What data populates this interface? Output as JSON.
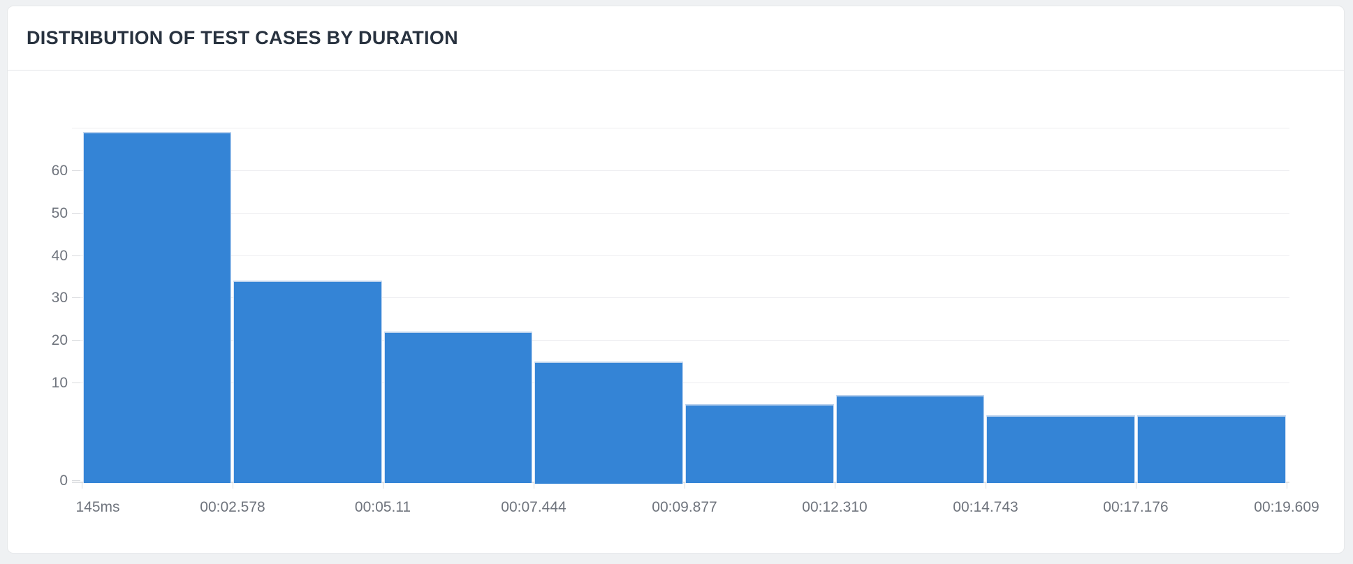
{
  "widget": {
    "title": "DISTRIBUTION OF TEST CASES BY DURATION"
  },
  "chart_data": {
    "type": "bar",
    "title": "DISTRIBUTION OF TEST CASES BY DURATION",
    "xlabel": "",
    "ylabel": "",
    "x_bin_edge_labels": [
      "145ms",
      "00:02.578",
      "00:05.11",
      "00:07.444",
      "00:09.877",
      "00:12.310",
      "00:14.743",
      "00:17.176",
      "00:19.609"
    ],
    "values": [
      69,
      34,
      22,
      15,
      8,
      9,
      7,
      7
    ],
    "y_ticks": [
      0,
      10,
      20,
      30,
      40,
      50,
      60
    ],
    "ylim": [
      0,
      70
    ],
    "grid": "horizontal",
    "legend": "none",
    "y_scale_note": "0-10 band rendered wider than upper decades"
  },
  "colors": {
    "bar_fill": "#3484d6",
    "bar_top_edge": "#b9d1ed",
    "grid_line": "#ededf0",
    "axis_base_line": "#e0e2e5",
    "tick_mark": "#d9dbde",
    "axis_text": "#6f747d",
    "title_text": "#28323f",
    "card_background": "#ffffff",
    "page_background": "#eff1f3"
  }
}
